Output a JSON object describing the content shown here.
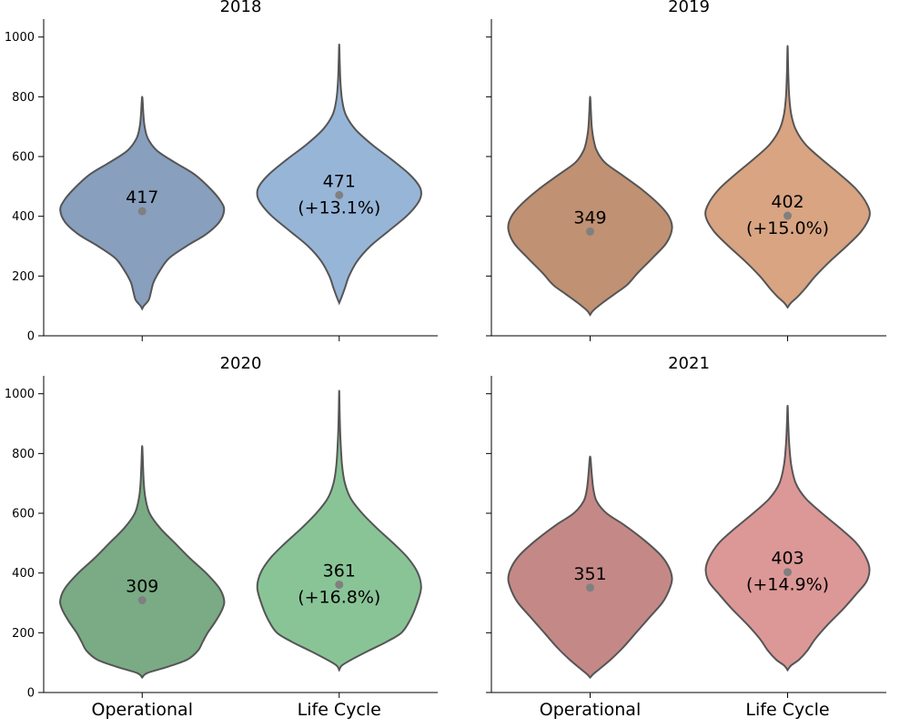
{
  "chart_data": [
    {
      "type": "violin",
      "title": "2018",
      "categories": [
        "Operational",
        "Life Cycle"
      ],
      "ylim": [
        0,
        1060
      ],
      "yticks": [
        0,
        200,
        400,
        600,
        800,
        1000
      ],
      "show_ytick_labels": true,
      "show_xtick_labels": false,
      "colors": [
        "#889fbd",
        "#97b5d7"
      ],
      "violins": [
        {
          "category": "Operational",
          "mean": 417,
          "label": "417",
          "min": 90,
          "max": 800,
          "mode": 420,
          "profile": [
            [
              90,
              0.0
            ],
            [
              100,
              0.02
            ],
            [
              120,
              0.08
            ],
            [
              150,
              0.11
            ],
            [
              180,
              0.14
            ],
            [
              220,
              0.22
            ],
            [
              260,
              0.33
            ],
            [
              300,
              0.54
            ],
            [
              340,
              0.78
            ],
            [
              380,
              0.94
            ],
            [
              420,
              1.0
            ],
            [
              450,
              0.96
            ],
            [
              490,
              0.84
            ],
            [
              540,
              0.64
            ],
            [
              580,
              0.4
            ],
            [
              620,
              0.18
            ],
            [
              660,
              0.07
            ],
            [
              700,
              0.03
            ],
            [
              740,
              0.015
            ],
            [
              800,
              0.0
            ]
          ]
        },
        {
          "category": "Life Cycle",
          "mean": 471,
          "label": "471",
          "sub_label": "(+13.1%)",
          "min": 110,
          "max": 975,
          "mode": 470,
          "profile": [
            [
              110,
              0.0
            ],
            [
              130,
              0.03
            ],
            [
              160,
              0.07
            ],
            [
              200,
              0.12
            ],
            [
              250,
              0.22
            ],
            [
              300,
              0.38
            ],
            [
              350,
              0.6
            ],
            [
              400,
              0.82
            ],
            [
              440,
              0.95
            ],
            [
              470,
              1.0
            ],
            [
              500,
              0.98
            ],
            [
              540,
              0.86
            ],
            [
              590,
              0.64
            ],
            [
              640,
              0.4
            ],
            [
              690,
              0.2
            ],
            [
              740,
              0.08
            ],
            [
              790,
              0.035
            ],
            [
              850,
              0.015
            ],
            [
              920,
              0.006
            ],
            [
              975,
              0.0
            ]
          ]
        }
      ]
    },
    {
      "type": "violin",
      "title": "2019",
      "categories": [
        "Operational",
        "Life Cycle"
      ],
      "ylim": [
        0,
        1060
      ],
      "yticks": [
        0,
        200,
        400,
        600,
        800,
        1000
      ],
      "show_ytick_labels": false,
      "show_xtick_labels": false,
      "colors": [
        "#c09173",
        "#d8a482"
      ],
      "violins": [
        {
          "category": "Operational",
          "mean": 349,
          "label": "349",
          "min": 70,
          "max": 800,
          "mode": 360,
          "profile": [
            [
              70,
              0.0
            ],
            [
              85,
              0.04
            ],
            [
              110,
              0.15
            ],
            [
              140,
              0.3
            ],
            [
              170,
              0.45
            ],
            [
              210,
              0.58
            ],
            [
              260,
              0.76
            ],
            [
              310,
              0.93
            ],
            [
              360,
              1.0
            ],
            [
              400,
              0.96
            ],
            [
              440,
              0.84
            ],
            [
              490,
              0.63
            ],
            [
              540,
              0.38
            ],
            [
              580,
              0.18
            ],
            [
              620,
              0.08
            ],
            [
              660,
              0.04
            ],
            [
              700,
              0.02
            ],
            [
              750,
              0.01
            ],
            [
              800,
              0.0
            ]
          ]
        },
        {
          "category": "Life Cycle",
          "mean": 402,
          "label": "402",
          "sub_label": "(+15.0%)",
          "min": 95,
          "max": 970,
          "mode": 400,
          "profile": [
            [
              95,
              0.0
            ],
            [
              110,
              0.04
            ],
            [
              130,
              0.12
            ],
            [
              160,
              0.22
            ],
            [
              200,
              0.34
            ],
            [
              250,
              0.52
            ],
            [
              300,
              0.72
            ],
            [
              350,
              0.9
            ],
            [
              400,
              1.0
            ],
            [
              440,
              0.97
            ],
            [
              490,
              0.84
            ],
            [
              540,
              0.64
            ],
            [
              590,
              0.42
            ],
            [
              640,
              0.22
            ],
            [
              690,
              0.1
            ],
            [
              740,
              0.045
            ],
            [
              800,
              0.02
            ],
            [
              880,
              0.008
            ],
            [
              970,
              0.0
            ]
          ]
        }
      ]
    },
    {
      "type": "violin",
      "title": "2020",
      "categories": [
        "Operational",
        "Life Cycle"
      ],
      "ylim": [
        0,
        1060
      ],
      "yticks": [
        0,
        200,
        400,
        600,
        800,
        1000
      ],
      "show_ytick_labels": true,
      "show_xtick_labels": true,
      "colors": [
        "#7aab85",
        "#89c497"
      ],
      "violins": [
        {
          "category": "Operational",
          "mean": 309,
          "label": "309",
          "min": 50,
          "max": 825,
          "mode": 310,
          "profile": [
            [
              50,
              0.0
            ],
            [
              65,
              0.06
            ],
            [
              85,
              0.3
            ],
            [
              110,
              0.55
            ],
            [
              140,
              0.68
            ],
            [
              170,
              0.74
            ],
            [
              200,
              0.8
            ],
            [
              240,
              0.9
            ],
            [
              280,
              0.98
            ],
            [
              310,
              1.0
            ],
            [
              350,
              0.94
            ],
            [
              400,
              0.78
            ],
            [
              450,
              0.58
            ],
            [
              500,
              0.4
            ],
            [
              550,
              0.22
            ],
            [
              600,
              0.09
            ],
            [
              650,
              0.04
            ],
            [
              700,
              0.02
            ],
            [
              760,
              0.01
            ],
            [
              825,
              0.0
            ]
          ]
        },
        {
          "category": "Life Cycle",
          "mean": 361,
          "label": "361",
          "sub_label": "(+16.8%)",
          "min": 75,
          "max": 1010,
          "mode": 350,
          "profile": [
            [
              75,
              0.0
            ],
            [
              90,
              0.03
            ],
            [
              110,
              0.15
            ],
            [
              140,
              0.36
            ],
            [
              170,
              0.58
            ],
            [
              200,
              0.76
            ],
            [
              240,
              0.86
            ],
            [
              290,
              0.94
            ],
            [
              350,
              1.0
            ],
            [
              400,
              0.96
            ],
            [
              450,
              0.84
            ],
            [
              500,
              0.66
            ],
            [
              550,
              0.46
            ],
            [
              600,
              0.28
            ],
            [
              650,
              0.14
            ],
            [
              700,
              0.07
            ],
            [
              760,
              0.035
            ],
            [
              850,
              0.015
            ],
            [
              930,
              0.006
            ],
            [
              1010,
              0.0
            ]
          ]
        }
      ]
    },
    {
      "type": "violin",
      "title": "2021",
      "categories": [
        "Operational",
        "Life Cycle"
      ],
      "ylim": [
        0,
        1060
      ],
      "yticks": [
        0,
        200,
        400,
        600,
        800,
        1000
      ],
      "show_ytick_labels": false,
      "show_xtick_labels": true,
      "colors": [
        "#c48987",
        "#dc9897"
      ],
      "violins": [
        {
          "category": "Operational",
          "mean": 351,
          "label": "351",
          "min": 50,
          "max": 790,
          "mode": 380,
          "profile": [
            [
              50,
              0.0
            ],
            [
              62,
              0.04
            ],
            [
              80,
              0.12
            ],
            [
              110,
              0.25
            ],
            [
              150,
              0.4
            ],
            [
              200,
              0.56
            ],
            [
              250,
              0.72
            ],
            [
              300,
              0.88
            ],
            [
              340,
              0.96
            ],
            [
              380,
              1.0
            ],
            [
              420,
              0.96
            ],
            [
              460,
              0.86
            ],
            [
              510,
              0.66
            ],
            [
              560,
              0.42
            ],
            [
              600,
              0.2
            ],
            [
              640,
              0.08
            ],
            [
              680,
              0.04
            ],
            [
              730,
              0.02
            ],
            [
              790,
              0.0
            ]
          ]
        },
        {
          "category": "Life Cycle",
          "mean": 403,
          "label": "403",
          "sub_label": "(+14.9%)",
          "min": 75,
          "max": 960,
          "mode": 410,
          "profile": [
            [
              75,
              0.0
            ],
            [
              90,
              0.04
            ],
            [
              110,
              0.14
            ],
            [
              140,
              0.24
            ],
            [
              180,
              0.34
            ],
            [
              230,
              0.5
            ],
            [
              280,
              0.68
            ],
            [
              330,
              0.84
            ],
            [
              370,
              0.96
            ],
            [
              410,
              1.0
            ],
            [
              450,
              0.96
            ],
            [
              500,
              0.84
            ],
            [
              550,
              0.64
            ],
            [
              600,
              0.42
            ],
            [
              650,
              0.22
            ],
            [
              700,
              0.1
            ],
            [
              760,
              0.045
            ],
            [
              830,
              0.02
            ],
            [
              900,
              0.008
            ],
            [
              960,
              0.0
            ]
          ]
        }
      ]
    }
  ]
}
